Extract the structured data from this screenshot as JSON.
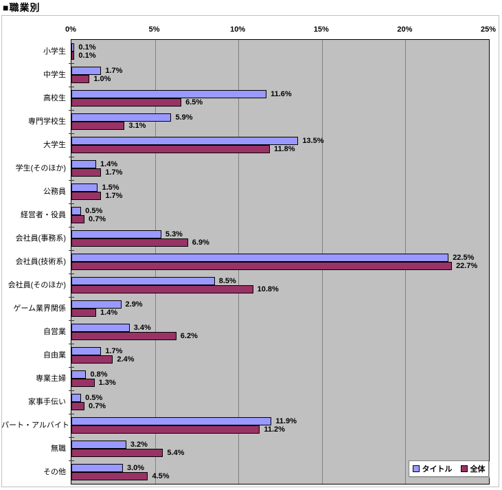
{
  "title": "■職業別",
  "chart_data": {
    "type": "bar",
    "orientation": "horizontal",
    "title": "■職業別",
    "xlabel": "",
    "ylabel": "",
    "xlim": [
      0,
      25
    ],
    "x_ticks": [
      "0%",
      "5%",
      "10%",
      "15%",
      "20%",
      "25%"
    ],
    "grid": "vertical",
    "plot_background": "#C0C0C0",
    "gridline_color": "#808080",
    "legend_position": "bottom-right",
    "value_label_suffix": "%",
    "categories": [
      "小学生",
      "中学生",
      "高校生",
      "専門学校生",
      "大学生",
      "学生(そのほか)",
      "公務員",
      "経営者・役員",
      "会社員(事務系)",
      "会社員(技術系)",
      "会社員(そのほか)",
      "ゲーム業界関係",
      "自営業",
      "自由業",
      "専業主婦",
      "家事手伝い",
      "パート・アルバイト",
      "無職",
      "その他"
    ],
    "series": [
      {
        "name": "タイトル",
        "color": "#9999FF",
        "values": [
          0.1,
          1.7,
          11.6,
          5.9,
          13.5,
          1.4,
          1.5,
          0.5,
          5.3,
          22.5,
          8.5,
          2.9,
          3.4,
          1.7,
          0.8,
          0.5,
          11.9,
          3.2,
          3.0
        ]
      },
      {
        "name": "全体",
        "color": "#993366",
        "values": [
          0.1,
          1.0,
          6.5,
          3.1,
          11.8,
          1.7,
          1.7,
          0.7,
          6.9,
          22.7,
          10.8,
          1.4,
          6.2,
          2.4,
          1.3,
          0.7,
          11.2,
          5.4,
          4.5
        ]
      }
    ]
  }
}
